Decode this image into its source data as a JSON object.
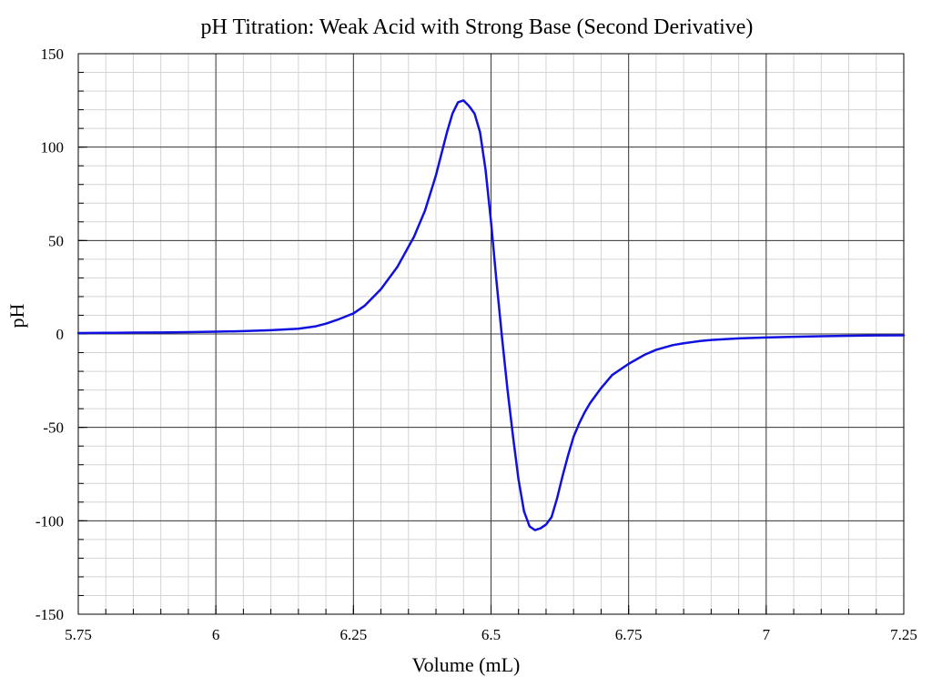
{
  "chart_data": {
    "type": "line",
    "title": "pH Titration: Weak Acid with Strong Base (Second Derivative)",
    "xlabel": "Volume (mL)",
    "ylabel": "pH",
    "xlim": [
      5.75,
      7.25
    ],
    "ylim": [
      -150,
      150
    ],
    "x_ticks": [
      5.75,
      6,
      6.25,
      6.5,
      6.75,
      7,
      7.25
    ],
    "x_tick_labels": [
      "5.75",
      "6",
      "6.25",
      "6.5",
      "6.75",
      "7",
      "7.25"
    ],
    "y_ticks": [
      -150,
      -100,
      -50,
      0,
      50,
      100,
      150
    ],
    "y_tick_labels": [
      "-150",
      "-100",
      "-50",
      "0",
      "50",
      "100",
      "150"
    ],
    "grid": true,
    "series": [
      {
        "color": "#1010e0",
        "x": [
          5.75,
          5.8,
          5.85,
          5.9,
          5.95,
          6.0,
          6.05,
          6.1,
          6.15,
          6.18,
          6.2,
          6.22,
          6.25,
          6.27,
          6.3,
          6.33,
          6.36,
          6.38,
          6.4,
          6.42,
          6.43,
          6.44,
          6.45,
          6.46,
          6.47,
          6.48,
          6.49,
          6.5,
          6.51,
          6.52,
          6.53,
          6.54,
          6.55,
          6.56,
          6.57,
          6.58,
          6.59,
          6.6,
          6.61,
          6.62,
          6.63,
          6.64,
          6.65,
          6.66,
          6.67,
          6.68,
          6.7,
          6.72,
          6.75,
          6.78,
          6.8,
          6.83,
          6.85,
          6.88,
          6.9,
          6.95,
          7.0,
          7.05,
          7.1,
          7.15,
          7.2,
          7.25
        ],
        "y": [
          0.5,
          0.6,
          0.7,
          0.8,
          1.0,
          1.2,
          1.5,
          2.0,
          2.8,
          4.0,
          5.5,
          7.5,
          11.0,
          15.0,
          24.0,
          36.0,
          52.0,
          66.0,
          85.0,
          108.0,
          118.0,
          124.0,
          125.0,
          122.0,
          118.0,
          108.0,
          88.0,
          60.0,
          28.0,
          -2.0,
          -30.0,
          -55.0,
          -78.0,
          -95.0,
          -103.0,
          -105.0,
          -104.0,
          -102.0,
          -98.0,
          -88.0,
          -76.0,
          -65.0,
          -55.0,
          -48.0,
          -42.0,
          -37.0,
          -29.0,
          -22.0,
          -16.0,
          -11.0,
          -8.5,
          -6.0,
          -5.0,
          -3.8,
          -3.2,
          -2.4,
          -1.9,
          -1.5,
          -1.2,
          -1.0,
          -0.8,
          -0.7
        ]
      }
    ]
  }
}
